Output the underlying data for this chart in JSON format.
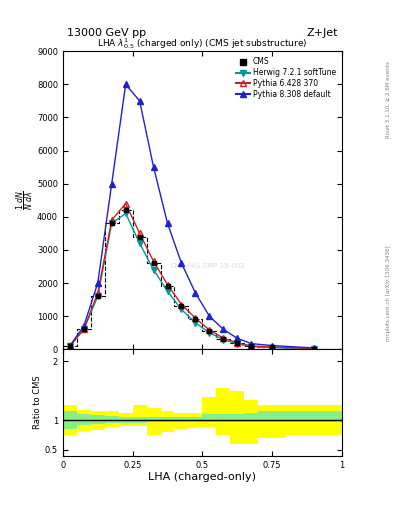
{
  "title_left": "13000 GeV pp",
  "title_right": "Z+Jet",
  "subplot_title": "LHA $\\lambda^{1}_{0.5}$ (charged only) (CMS jet substructure)",
  "xlabel": "LHA (charged-only)",
  "ylabel_main": "$\\frac{1}{N}\\frac{dN}{d\\lambda}$",
  "ylabel_ratio": "Ratio to CMS",
  "right_label_top": "Rivet 3.1.10, ≥ 2.6M events",
  "right_label_bottom": "mcplots.cern.ch [arXiv:1306.3436]",
  "watermark": "CMS-PAS-SMP-19-002",
  "xbins": [
    0.0,
    0.05,
    0.1,
    0.15,
    0.2,
    0.25,
    0.3,
    0.35,
    0.4,
    0.45,
    0.5,
    0.55,
    0.6,
    0.65,
    0.7,
    0.8,
    1.0
  ],
  "cms_values": [
    100,
    600,
    1600,
    3800,
    4200,
    3400,
    2600,
    1900,
    1300,
    900,
    550,
    320,
    180,
    90,
    60,
    20
  ],
  "herwig_values": [
    100,
    600,
    1600,
    3800,
    4100,
    3200,
    2400,
    1750,
    1200,
    800,
    500,
    290,
    160,
    80,
    50,
    15
  ],
  "pythia6_values": [
    100,
    600,
    1700,
    3900,
    4400,
    3500,
    2650,
    1950,
    1350,
    940,
    580,
    340,
    195,
    100,
    65,
    22
  ],
  "pythia8_values": [
    100,
    700,
    2000,
    5000,
    8000,
    7500,
    5500,
    3800,
    2600,
    1700,
    1000,
    600,
    330,
    170,
    110,
    40
  ],
  "ratio_xbins": [
    0.0,
    0.05,
    0.1,
    0.15,
    0.2,
    0.25,
    0.3,
    0.35,
    0.4,
    0.45,
    0.5,
    0.55,
    0.6,
    0.65,
    0.7,
    0.8,
    1.0
  ],
  "ratio_green_low": [
    0.85,
    0.92,
    0.94,
    0.95,
    0.96,
    0.96,
    0.97,
    0.97,
    0.97,
    0.97,
    0.97,
    0.97,
    0.97,
    0.97,
    0.97,
    0.97
  ],
  "ratio_green_high": [
    1.15,
    1.1,
    1.08,
    1.07,
    1.06,
    1.06,
    1.05,
    1.05,
    1.05,
    1.05,
    1.1,
    1.1,
    1.1,
    1.12,
    1.15,
    1.15
  ],
  "ratio_yellow_low": [
    0.75,
    0.82,
    0.84,
    0.88,
    0.9,
    0.9,
    0.75,
    0.8,
    0.85,
    0.88,
    0.88,
    0.75,
    0.6,
    0.6,
    0.7,
    0.75
  ],
  "ratio_yellow_high": [
    1.25,
    1.18,
    1.15,
    1.15,
    1.13,
    1.25,
    1.2,
    1.15,
    1.13,
    1.13,
    1.4,
    1.55,
    1.5,
    1.35,
    1.25,
    1.25
  ],
  "cms_color": "black",
  "herwig_color": "#009999",
  "pythia6_color": "#CC2222",
  "pythia8_color": "#2222CC",
  "ylim_main": [
    0,
    9000
  ],
  "ylim_ratio": [
    0.4,
    2.2
  ],
  "background_color": "white"
}
